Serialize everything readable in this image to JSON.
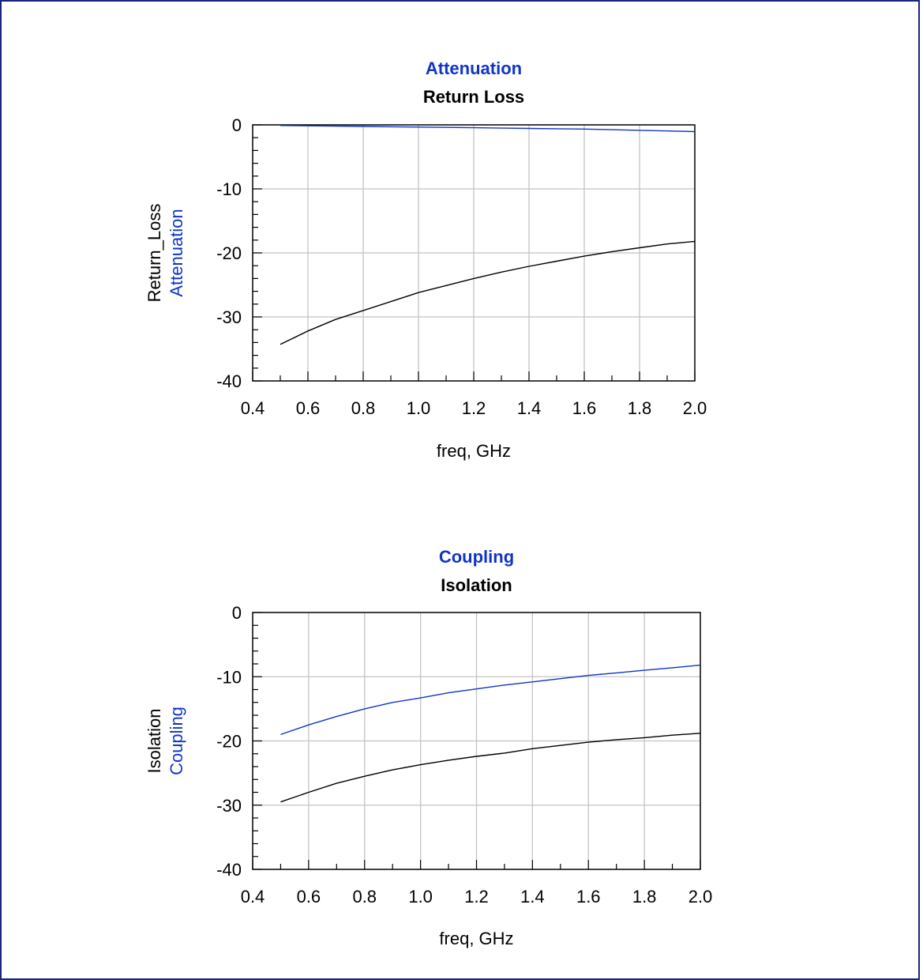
{
  "chart_data": [
    {
      "type": "line",
      "title_lines": [
        {
          "text": "Attenuation",
          "color": "#1034c8"
        },
        {
          "text": "Return Loss",
          "color": "#000000"
        }
      ],
      "xlabel": "freq, GHz",
      "ylabel_lines": [
        {
          "text": "Return_Loss",
          "color": "#000000"
        },
        {
          "text": "Attenuation",
          "color": "#1034c8"
        }
      ],
      "xlim": [
        0.4,
        2.0
      ],
      "ylim": [
        -40,
        0
      ],
      "x_ticks": [
        "0.4",
        "0.6",
        "0.8",
        "1.0",
        "1.2",
        "1.4",
        "1.6",
        "1.8",
        "2.0"
      ],
      "y_ticks": [
        "0",
        "-10",
        "-20",
        "-30",
        "-40"
      ],
      "grid": true,
      "series": [
        {
          "name": "Return_Loss",
          "color": "#000000",
          "x": [
            0.5,
            0.6,
            0.7,
            0.8,
            0.9,
            1.0,
            1.1,
            1.2,
            1.3,
            1.4,
            1.5,
            1.6,
            1.7,
            1.8,
            1.9,
            2.0
          ],
          "y": [
            -34.3,
            -32.2,
            -30.4,
            -29.0,
            -27.6,
            -26.2,
            -25.1,
            -24.0,
            -23.0,
            -22.1,
            -21.3,
            -20.5,
            -19.8,
            -19.2,
            -18.6,
            -18.2
          ]
        },
        {
          "name": "Attenuation",
          "color": "#1034c8",
          "x": [
            0.5,
            0.6,
            0.7,
            0.8,
            0.9,
            1.0,
            1.1,
            1.2,
            1.3,
            1.4,
            1.5,
            1.6,
            1.7,
            1.8,
            1.9,
            2.0
          ],
          "y": [
            -0.1,
            -0.15,
            -0.2,
            -0.25,
            -0.3,
            -0.35,
            -0.4,
            -0.45,
            -0.5,
            -0.55,
            -0.6,
            -0.65,
            -0.75,
            -0.85,
            -0.95,
            -1.05
          ]
        }
      ]
    },
    {
      "type": "line",
      "title_lines": [
        {
          "text": "Coupling",
          "color": "#1034c8"
        },
        {
          "text": "Isolation",
          "color": "#000000"
        }
      ],
      "xlabel": "freq, GHz",
      "ylabel_lines": [
        {
          "text": "Isolation",
          "color": "#000000"
        },
        {
          "text": "Coupling",
          "color": "#1034c8"
        }
      ],
      "xlim": [
        0.4,
        2.0
      ],
      "ylim": [
        -40,
        0
      ],
      "x_ticks": [
        "0.4",
        "0.6",
        "0.8",
        "1.0",
        "1.2",
        "1.4",
        "1.6",
        "1.8",
        "2.0"
      ],
      "y_ticks": [
        "0",
        "-10",
        "-20",
        "-30",
        "-40"
      ],
      "grid": true,
      "series": [
        {
          "name": "Isolation",
          "color": "#000000",
          "x": [
            0.5,
            0.6,
            0.7,
            0.8,
            0.9,
            1.0,
            1.1,
            1.2,
            1.3,
            1.4,
            1.5,
            1.6,
            1.7,
            1.8,
            1.9,
            2.0
          ],
          "y": [
            -29.5,
            -28.0,
            -26.6,
            -25.5,
            -24.5,
            -23.7,
            -23.0,
            -22.4,
            -21.9,
            -21.2,
            -20.7,
            -20.2,
            -19.8,
            -19.5,
            -19.1,
            -18.8
          ]
        },
        {
          "name": "Coupling",
          "color": "#1034c8",
          "x": [
            0.5,
            0.6,
            0.7,
            0.8,
            0.9,
            1.0,
            1.1,
            1.2,
            1.3,
            1.4,
            1.5,
            1.6,
            1.7,
            1.8,
            1.9,
            2.0
          ],
          "y": [
            -19.0,
            -17.5,
            -16.2,
            -15.0,
            -14.0,
            -13.3,
            -12.5,
            -11.9,
            -11.3,
            -10.8,
            -10.3,
            -9.8,
            -9.4,
            -9.0,
            -8.6,
            -8.2
          ]
        }
      ]
    }
  ]
}
